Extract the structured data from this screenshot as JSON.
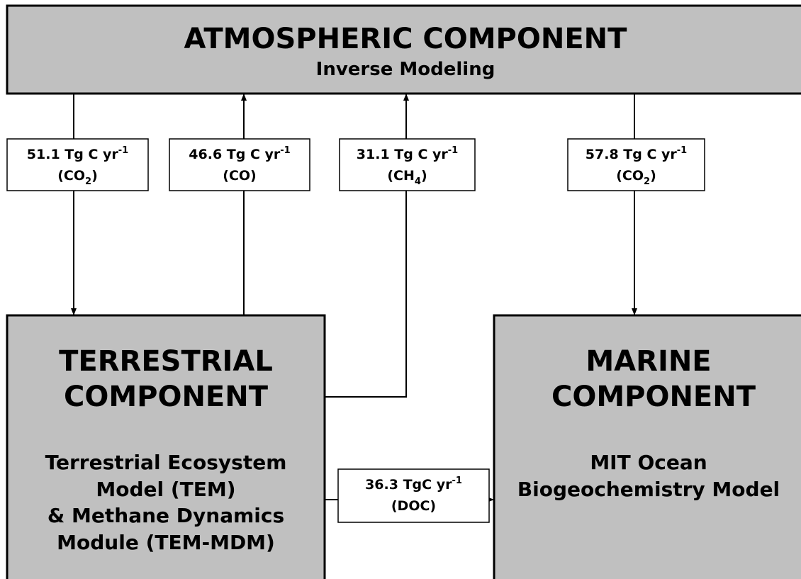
{
  "atmosphere": {
    "title": "ATMOSPHERIC COMPONENT",
    "subtitle": "Inverse Modeling"
  },
  "terrestrial": {
    "title_lines": [
      "TERRESTRIAL",
      "COMPONENT"
    ],
    "description_lines": [
      "Terrestrial Ecosystem",
      "Model (TEM)",
      "& Methane Dynamics",
      "Module (TEM-MDM)"
    ]
  },
  "marine": {
    "title_lines": [
      "MARINE",
      "COMPONENT"
    ],
    "description_lines": [
      "MIT Ocean",
      "Biogeochemistry Model"
    ]
  },
  "flows": [
    {
      "amount": "51.1 Tg C yr",
      "exponent": "-1",
      "gas": "(CO",
      "gas_sub": "2",
      "gas_end": ")"
    },
    {
      "amount": "46.6 Tg C yr",
      "exponent": "-1",
      "gas": "(CO)"
    },
    {
      "amount": "31.1 Tg C yr",
      "exponent": "-1",
      "gas": "(CH",
      "gas_sub": "4",
      "gas_end": ")"
    },
    {
      "amount": "57.8 Tg C yr",
      "exponent": "-1",
      "gas": "(CO",
      "gas_sub": "2",
      "gas_end": ")"
    },
    {
      "amount": "36.3 TgC yr",
      "exponent": "-1",
      "gas": "(DOC)"
    }
  ]
}
